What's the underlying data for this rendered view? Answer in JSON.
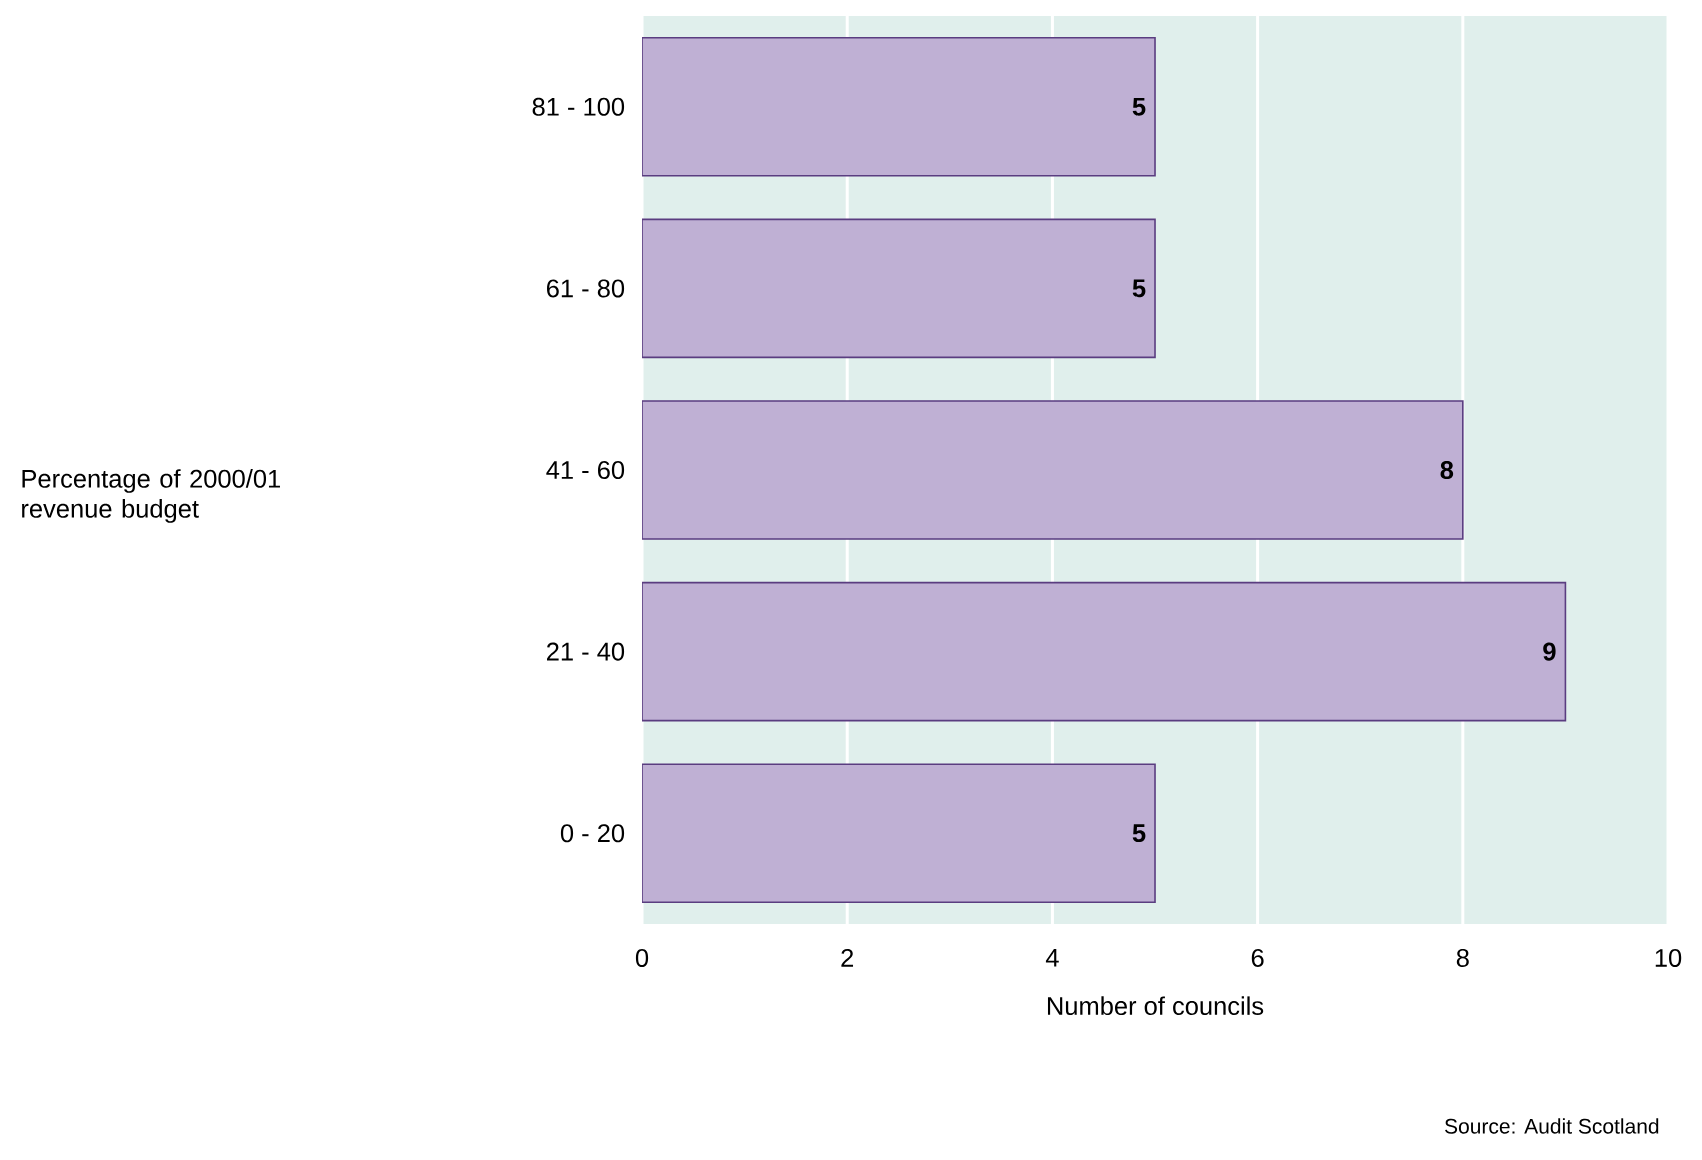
{
  "chart_data": {
    "type": "bar",
    "orientation": "horizontal",
    "xlabel": "Number of councils",
    "categories": [
      "81 - 100",
      "61 - 80",
      "41 - 60",
      "21 - 40",
      "0 - 20"
    ],
    "values": [
      5,
      5,
      8,
      9,
      5
    ],
    "color": "#bfb0d4",
    "xlim": [
      0,
      10
    ],
    "xticks": [
      0,
      2,
      4,
      6,
      8,
      10
    ],
    "grid": "x",
    "data_labels": true,
    "annotations": [
      "Percentage of 2000/01 revenue budget",
      "Source: Audit Scotland"
    ]
  }
}
